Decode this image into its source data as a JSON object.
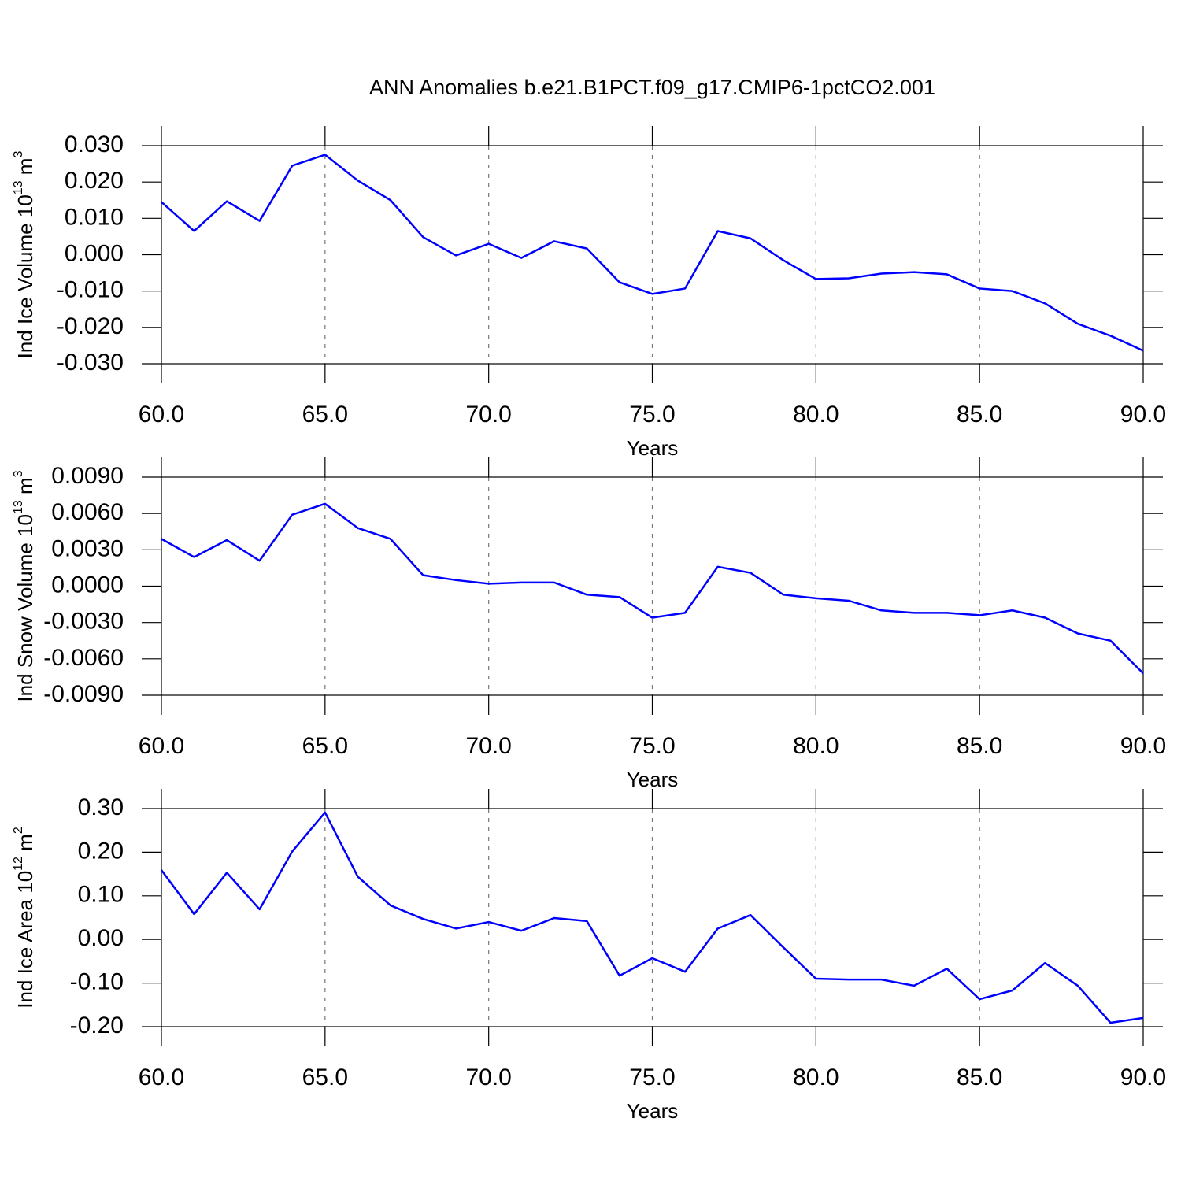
{
  "chart_data": [
    {
      "type": "line",
      "title": "ANN Anomalies b.e21.B1PCT.f09_g17.CMIP6-1pctCO2.001",
      "ylabel": [
        "Ind Ice Volume 10",
        "13",
        " m",
        "3"
      ],
      "xlabel": "Years",
      "x": [
        60,
        61,
        62,
        63,
        64,
        65,
        66,
        67,
        68,
        69,
        70,
        71,
        72,
        73,
        74,
        75,
        76,
        77,
        78,
        79,
        80,
        81,
        82,
        83,
        84,
        85,
        86,
        87,
        88,
        89,
        90
      ],
      "series": [
        {
          "color": "#0000ff",
          "values": [
            0.0145,
            0.0065,
            0.0147,
            0.0093,
            0.0245,
            0.0275,
            0.0204,
            0.015,
            0.0048,
            -0.0002,
            0.003,
            -0.0009,
            0.0037,
            0.0017,
            -0.0076,
            -0.0108,
            -0.0093,
            0.0065,
            0.0045,
            -0.0015,
            -0.0067,
            -0.0065,
            -0.0052,
            -0.0048,
            -0.0054,
            -0.0093,
            -0.01,
            -0.0134,
            -0.019,
            -0.0223,
            -0.0264
          ]
        }
      ],
      "xlim": [
        60,
        90
      ],
      "ylim": [
        -0.03,
        0.03
      ],
      "xticks": [
        {
          "value": 60,
          "label": "60.0"
        },
        {
          "value": 65,
          "label": "65.0"
        },
        {
          "value": 70,
          "label": "70.0"
        },
        {
          "value": 75,
          "label": "75.0"
        },
        {
          "value": 80,
          "label": "80.0"
        },
        {
          "value": 85,
          "label": "85.0"
        },
        {
          "value": 90,
          "label": "90.0"
        }
      ],
      "yticks": [
        {
          "value": -0.03,
          "label": "-0.030"
        },
        {
          "value": -0.02,
          "label": "-0.020"
        },
        {
          "value": -0.01,
          "label": "-0.010"
        },
        {
          "value": 0,
          "label": "0.000"
        },
        {
          "value": 0.01,
          "label": "0.010"
        },
        {
          "value": 0.02,
          "label": "0.020"
        },
        {
          "value": 0.03,
          "label": "0.030"
        }
      ],
      "grid": "x"
    },
    {
      "type": "line",
      "ylabel": [
        "Ind Snow Volume 10",
        "13",
        " m",
        "3"
      ],
      "xlabel": "Years",
      "x": [
        60,
        61,
        62,
        63,
        64,
        65,
        66,
        67,
        68,
        69,
        70,
        71,
        72,
        73,
        74,
        75,
        76,
        77,
        78,
        79,
        80,
        81,
        82,
        83,
        84,
        85,
        86,
        87,
        88,
        89,
        90
      ],
      "series": [
        {
          "color": "#0000ff",
          "values": [
            0.0039,
            0.0024,
            0.0038,
            0.0021,
            0.0059,
            0.0068,
            0.0048,
            0.0039,
            0.0009,
            0.0005,
            0.0002,
            0.0003,
            0.0003,
            -0.0007,
            -0.0009,
            -0.0026,
            -0.0022,
            0.0016,
            0.0011,
            -0.0007,
            -0.001,
            -0.0012,
            -0.002,
            -0.0022,
            -0.0022,
            -0.0024,
            -0.002,
            -0.0026,
            -0.0039,
            -0.0045,
            -0.0072
          ]
        }
      ],
      "xlim": [
        60,
        90
      ],
      "ylim": [
        -0.009,
        0.009
      ],
      "xticks": [
        {
          "value": 60,
          "label": "60.0"
        },
        {
          "value": 65,
          "label": "65.0"
        },
        {
          "value": 70,
          "label": "70.0"
        },
        {
          "value": 75,
          "label": "75.0"
        },
        {
          "value": 80,
          "label": "80.0"
        },
        {
          "value": 85,
          "label": "85.0"
        },
        {
          "value": 90,
          "label": "90.0"
        }
      ],
      "yticks": [
        {
          "value": -0.009,
          "label": "-0.0090"
        },
        {
          "value": -0.006,
          "label": "-0.0060"
        },
        {
          "value": -0.003,
          "label": "-0.0030"
        },
        {
          "value": 0,
          "label": "0.0000"
        },
        {
          "value": 0.003,
          "label": "0.0030"
        },
        {
          "value": 0.006,
          "label": "0.0060"
        },
        {
          "value": 0.009,
          "label": "0.0090"
        }
      ],
      "grid": "x"
    },
    {
      "type": "line",
      "ylabel": [
        "Ind Ice Area 10",
        "12",
        " m",
        "2"
      ],
      "xlabel": "Years",
      "x": [
        60,
        61,
        62,
        63,
        64,
        65,
        66,
        67,
        68,
        69,
        70,
        71,
        72,
        73,
        74,
        75,
        76,
        77,
        78,
        79,
        80,
        81,
        82,
        83,
        84,
        85,
        86,
        87,
        88,
        89,
        90
      ],
      "series": [
        {
          "color": "#0000ff",
          "values": [
            0.159,
            0.058,
            0.153,
            0.069,
            0.202,
            0.291,
            0.144,
            0.078,
            0.047,
            0.025,
            0.04,
            0.02,
            0.049,
            0.042,
            -0.083,
            -0.043,
            -0.074,
            0.025,
            0.056,
            -0.018,
            -0.09,
            -0.092,
            -0.092,
            -0.106,
            -0.067,
            -0.137,
            -0.117,
            -0.054,
            -0.106,
            -0.191,
            -0.18
          ]
        }
      ],
      "xlim": [
        60,
        90
      ],
      "ylim": [
        -0.2,
        0.3
      ],
      "xticks": [
        {
          "value": 60,
          "label": "60.0"
        },
        {
          "value": 65,
          "label": "65.0"
        },
        {
          "value": 70,
          "label": "70.0"
        },
        {
          "value": 75,
          "label": "75.0"
        },
        {
          "value": 80,
          "label": "80.0"
        },
        {
          "value": 85,
          "label": "85.0"
        },
        {
          "value": 90,
          "label": "90.0"
        }
      ],
      "yticks": [
        {
          "value": -0.2,
          "label": "-0.20"
        },
        {
          "value": -0.1,
          "label": "-0.10"
        },
        {
          "value": 0,
          "label": "0.00"
        },
        {
          "value": 0.1,
          "label": "0.10"
        },
        {
          "value": 0.2,
          "label": "0.20"
        },
        {
          "value": 0.3,
          "label": "0.30"
        }
      ],
      "grid": "x"
    }
  ]
}
